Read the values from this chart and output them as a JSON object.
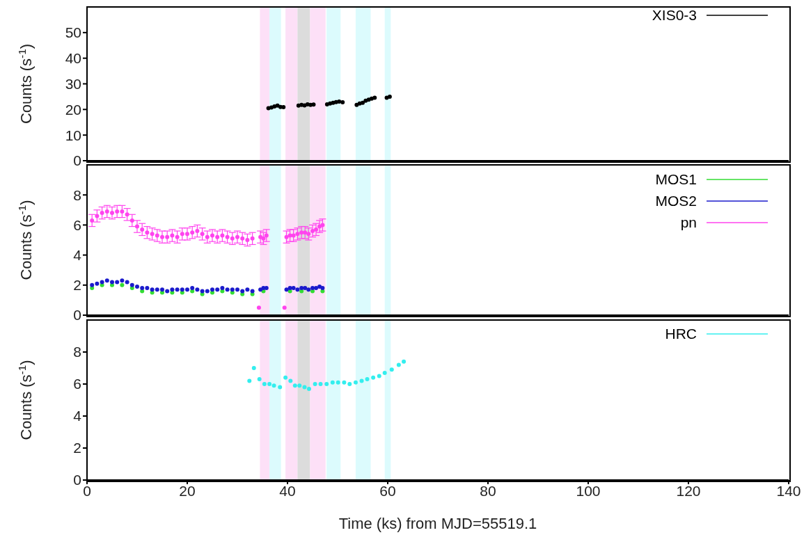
{
  "chart_data": [
    {
      "type": "scatter",
      "ylabel": "Counts (s$^{-1}$)",
      "xlim": [
        0,
        140
      ],
      "xticks": [
        0,
        20,
        40,
        60,
        80,
        100,
        120,
        140
      ],
      "ylim": [
        0,
        60
      ],
      "yticks": [
        0,
        10,
        20,
        30,
        40,
        50
      ],
      "tick_labels": "y",
      "legend": "top right",
      "marker": "circle",
      "bands": [
        {
          "axis": "x",
          "from": 34.5,
          "to": 36.4,
          "color": "#fde0f7"
        },
        {
          "axis": "x",
          "from": 36.4,
          "to": 38.7,
          "color": "#dcfbfd"
        },
        {
          "axis": "x",
          "from": 39.6,
          "to": 42,
          "color": "#fde0f7"
        },
        {
          "axis": "x",
          "from": 42,
          "to": 44.5,
          "color": "#dcdcdc"
        },
        {
          "axis": "x",
          "from": 44.5,
          "to": 47.6,
          "color": "#fde0f7"
        },
        {
          "axis": "x",
          "from": 47.8,
          "to": 50.6,
          "color": "#dcfbfd"
        },
        {
          "axis": "x",
          "from": 53.6,
          "to": 56.6,
          "color": "#dcfbfd"
        },
        {
          "axis": "x",
          "from": 59.4,
          "to": 60.6,
          "color": "#dcfbfd"
        }
      ],
      "series": [
        {
          "name": "XIS0-3",
          "color": "#000000",
          "x": [
            36.2,
            36.8,
            37.4,
            38.0,
            38.6,
            39.2,
            42.2,
            42.8,
            43.4,
            44.0,
            44.6,
            45.2,
            47.9,
            48.5,
            49.1,
            49.7,
            50.3,
            51.0,
            53.8,
            54.4,
            55.0,
            55.6,
            56.2,
            56.8,
            57.4,
            59.8,
            60.4
          ],
          "values": [
            20.5,
            20.8,
            21.2,
            21.5,
            21.0,
            20.9,
            21.5,
            21.8,
            21.6,
            22.0,
            21.8,
            21.9,
            22.0,
            22.3,
            22.6,
            22.9,
            23.1,
            22.8,
            21.8,
            22.3,
            22.6,
            23.4,
            23.8,
            24.2,
            24.6,
            24.6,
            25.0
          ]
        }
      ]
    },
    {
      "type": "scatter",
      "ylabel": "Counts (s$^{-1}$)",
      "xlim": [
        0,
        140
      ],
      "xticks": [
        0,
        20,
        40,
        60,
        80,
        100,
        120,
        140
      ],
      "ylim": [
        0,
        10
      ],
      "yticks": [
        0,
        2,
        4,
        6,
        8
      ],
      "tick_labels": "y",
      "legend": "top right",
      "marker": "circle",
      "bands": [
        {
          "axis": "x",
          "from": 34.5,
          "to": 36.4,
          "color": "#fde0f7"
        },
        {
          "axis": "x",
          "from": 36.4,
          "to": 38.7,
          "color": "#dcfbfd"
        },
        {
          "axis": "x",
          "from": 39.6,
          "to": 42,
          "color": "#fde0f7"
        },
        {
          "axis": "x",
          "from": 42,
          "to": 44.5,
          "color": "#dcdcdc"
        },
        {
          "axis": "x",
          "from": 44.5,
          "to": 47.6,
          "color": "#fde0f7"
        },
        {
          "axis": "x",
          "from": 47.8,
          "to": 50.6,
          "color": "#dcfbfd"
        },
        {
          "axis": "x",
          "from": 53.6,
          "to": 56.6,
          "color": "#dcfbfd"
        },
        {
          "axis": "x",
          "from": 59.4,
          "to": 60.6,
          "color": "#dcfbfd"
        }
      ],
      "series": [
        {
          "name": "MOS1",
          "color": "#33dd33",
          "x": [
            1,
            3,
            5,
            7,
            9,
            11,
            13,
            15,
            17,
            19,
            21,
            23,
            25,
            27,
            29,
            31,
            33,
            35.2,
            40.5,
            42.8,
            45,
            47
          ],
          "values": [
            1.8,
            2.0,
            2.0,
            2.0,
            1.8,
            1.6,
            1.5,
            1.5,
            1.5,
            1.5,
            1.6,
            1.4,
            1.5,
            1.6,
            1.5,
            1.4,
            1.4,
            1.6,
            1.6,
            1.6,
            1.6,
            1.6
          ]
        },
        {
          "name": "MOS2",
          "color": "#1a1acc",
          "x": [
            1,
            2,
            3,
            4,
            5,
            6,
            7,
            8,
            9,
            10,
            11,
            12,
            13,
            14,
            15,
            16,
            17,
            18,
            19,
            20,
            21,
            22,
            23,
            24,
            25,
            26,
            27,
            28,
            29,
            30,
            31,
            32,
            33,
            34.6,
            35.2,
            35.8,
            39.8,
            40.5,
            41.2,
            42,
            42.8,
            43.5,
            44.2,
            45,
            45.7,
            46.4,
            47
          ],
          "values": [
            2.0,
            2.1,
            2.2,
            2.3,
            2.2,
            2.2,
            2.3,
            2.2,
            2.0,
            1.9,
            1.8,
            1.8,
            1.7,
            1.7,
            1.7,
            1.6,
            1.7,
            1.7,
            1.7,
            1.7,
            1.8,
            1.7,
            1.6,
            1.6,
            1.7,
            1.7,
            1.8,
            1.7,
            1.7,
            1.7,
            1.6,
            1.7,
            1.6,
            1.7,
            1.8,
            1.8,
            1.7,
            1.8,
            1.8,
            1.7,
            1.8,
            1.8,
            1.7,
            1.8,
            1.8,
            1.9,
            1.8
          ]
        },
        {
          "name": "pn",
          "color": "#ff44ee",
          "x": [
            1,
            2,
            3,
            4,
            5,
            6,
            7,
            8,
            9,
            10,
            11,
            12,
            13,
            14,
            15,
            16,
            17,
            18,
            19,
            20,
            21,
            22,
            23,
            24,
            25,
            26,
            27,
            28,
            29,
            30,
            31,
            32,
            33,
            34.3,
            34.6,
            35.2,
            35.8,
            39.4,
            39.8,
            40.5,
            41.2,
            42,
            42.8,
            43.5,
            44.2,
            45,
            45.7,
            46.4,
            47
          ],
          "values": [
            6.3,
            6.6,
            6.8,
            6.9,
            6.8,
            6.9,
            6.9,
            6.7,
            6.3,
            5.9,
            5.7,
            5.5,
            5.4,
            5.3,
            5.2,
            5.2,
            5.3,
            5.2,
            5.4,
            5.4,
            5.5,
            5.6,
            5.4,
            5.2,
            5.3,
            5.2,
            5.3,
            5.2,
            5.1,
            5.2,
            5.1,
            5.0,
            5.1,
            0.5,
            5.2,
            5.1,
            5.3,
            0.5,
            5.2,
            5.3,
            5.3,
            5.4,
            5.5,
            5.5,
            5.4,
            5.6,
            5.7,
            5.9,
            6.0
          ],
          "errors": [
            0.4,
            0.4,
            0.4,
            0.4,
            0.4,
            0.4,
            0.4,
            0.4,
            0.4,
            0.4,
            0.4,
            0.4,
            0.4,
            0.4,
            0.4,
            0.4,
            0.4,
            0.4,
            0.4,
            0.4,
            0.4,
            0.4,
            0.4,
            0.4,
            0.4,
            0.4,
            0.4,
            0.4,
            0.4,
            0.4,
            0.4,
            0.4,
            0.4,
            null,
            0.4,
            0.4,
            0.4,
            null,
            0.4,
            0.4,
            0.4,
            0.4,
            0.4,
            0.4,
            0.4,
            0.4,
            0.4,
            0.4,
            0.4
          ]
        }
      ]
    },
    {
      "type": "scatter",
      "ylabel": "Counts (s$^{-1}$)",
      "xlabel": "Time (ks) from MJD=55519.1",
      "xlim": [
        0,
        140
      ],
      "xticks": [
        0,
        20,
        40,
        60,
        80,
        100,
        120,
        140
      ],
      "ylim": [
        0,
        10
      ],
      "yticks": [
        0,
        2,
        4,
        6,
        8
      ],
      "legend": "top right",
      "marker": "circle",
      "bands": [
        {
          "axis": "x",
          "from": 34.5,
          "to": 36.4,
          "color": "#fde0f7"
        },
        {
          "axis": "x",
          "from": 36.4,
          "to": 38.7,
          "color": "#dcfbfd"
        },
        {
          "axis": "x",
          "from": 39.6,
          "to": 42,
          "color": "#fde0f7"
        },
        {
          "axis": "x",
          "from": 42,
          "to": 44.5,
          "color": "#dcdcdc"
        },
        {
          "axis": "x",
          "from": 44.5,
          "to": 47.6,
          "color": "#fde0f7"
        },
        {
          "axis": "x",
          "from": 47.8,
          "to": 50.6,
          "color": "#dcfbfd"
        },
        {
          "axis": "x",
          "from": 53.6,
          "to": 56.6,
          "color": "#dcfbfd"
        },
        {
          "axis": "x",
          "from": 59.4,
          "to": 60.6,
          "color": "#dcfbfd"
        }
      ],
      "series": [
        {
          "name": "HRC",
          "color": "#33eeee",
          "x": [
            32.4,
            33.3,
            34.4,
            35.4,
            36.4,
            37.3,
            38.5,
            39.6,
            40.6,
            41.5,
            42.4,
            43.4,
            44.3,
            45.5,
            46.6,
            47.8,
            49.0,
            50.1,
            51.3,
            52.4,
            53.6,
            54.8,
            55.9,
            57.1,
            58.3,
            59.4,
            60.8,
            62.2,
            63.2
          ],
          "values": [
            6.2,
            7.0,
            6.3,
            6.0,
            6.0,
            5.9,
            5.8,
            6.4,
            6.2,
            5.9,
            5.9,
            5.8,
            5.7,
            6.0,
            6.0,
            6.0,
            6.1,
            6.1,
            6.1,
            6.0,
            6.1,
            6.2,
            6.3,
            6.4,
            6.5,
            6.7,
            6.9,
            7.2,
            7.4
          ]
        }
      ]
    }
  ]
}
